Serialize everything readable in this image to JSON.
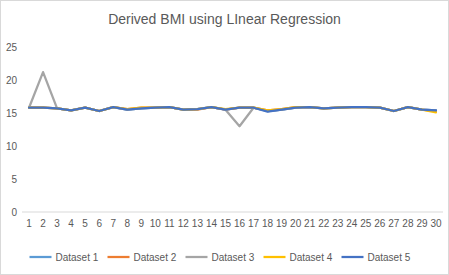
{
  "chart_data": {
    "type": "line",
    "title": "Derived BMI using LInear Regression",
    "categories": [
      "1",
      "2",
      "3",
      "4",
      "5",
      "6",
      "7",
      "8",
      "9",
      "10",
      "11",
      "12",
      "13",
      "14",
      "15",
      "16",
      "17",
      "18",
      "19",
      "20",
      "21",
      "22",
      "23",
      "24",
      "25",
      "26",
      "27",
      "28",
      "29",
      "30"
    ],
    "series": [
      {
        "name": "Dataset 1",
        "color": "#5b9bd5",
        "values": [
          15.8,
          15.8,
          15.7,
          15.4,
          15.8,
          15.3,
          15.9,
          15.5,
          15.7,
          15.8,
          15.9,
          15.5,
          15.6,
          15.9,
          15.5,
          15.8,
          15.8,
          15.3,
          15.5,
          15.8,
          15.9,
          15.7,
          15.8,
          15.9,
          15.9,
          15.8,
          15.3,
          15.9,
          15.5,
          15.4
        ]
      },
      {
        "name": "Dataset 2",
        "color": "#ed7d31",
        "values": [
          15.8,
          15.8,
          15.7,
          15.4,
          15.8,
          15.3,
          15.9,
          15.6,
          15.8,
          15.8,
          15.9,
          15.5,
          15.5,
          15.9,
          15.5,
          15.8,
          15.8,
          15.4,
          15.6,
          15.9,
          15.9,
          15.7,
          15.8,
          15.9,
          15.9,
          15.8,
          15.3,
          15.9,
          15.5,
          15.3
        ]
      },
      {
        "name": "Dataset 3",
        "color": "#a5a5a5",
        "values": [
          15.8,
          21.2,
          15.7,
          15.4,
          15.8,
          15.3,
          15.9,
          15.5,
          15.7,
          15.8,
          15.9,
          15.5,
          15.6,
          15.9,
          15.5,
          13.0,
          15.8,
          15.3,
          15.5,
          15.8,
          15.9,
          15.7,
          15.8,
          15.9,
          15.9,
          15.8,
          15.3,
          15.9,
          15.5,
          15.4
        ]
      },
      {
        "name": "Dataset 4",
        "color": "#ffc000",
        "values": [
          15.8,
          15.8,
          15.7,
          15.4,
          15.8,
          15.3,
          15.9,
          15.6,
          15.8,
          15.8,
          15.9,
          15.5,
          15.6,
          15.9,
          15.6,
          15.8,
          15.8,
          15.4,
          15.6,
          15.9,
          15.9,
          15.7,
          15.8,
          15.9,
          15.9,
          15.8,
          15.3,
          15.9,
          15.5,
          15.1
        ]
      },
      {
        "name": "Dataset 5",
        "color": "#4472c4",
        "values": [
          15.8,
          15.8,
          15.7,
          15.4,
          15.8,
          15.3,
          15.9,
          15.5,
          15.7,
          15.8,
          15.9,
          15.5,
          15.6,
          15.9,
          15.5,
          15.8,
          15.8,
          15.2,
          15.5,
          15.8,
          15.9,
          15.7,
          15.8,
          15.9,
          15.9,
          15.8,
          15.3,
          15.9,
          15.5,
          15.4
        ]
      }
    ],
    "ylim": [
      0,
      25
    ],
    "yticks": [
      0,
      5,
      10,
      15,
      20,
      25
    ],
    "grid": false,
    "legend": "bottom"
  }
}
